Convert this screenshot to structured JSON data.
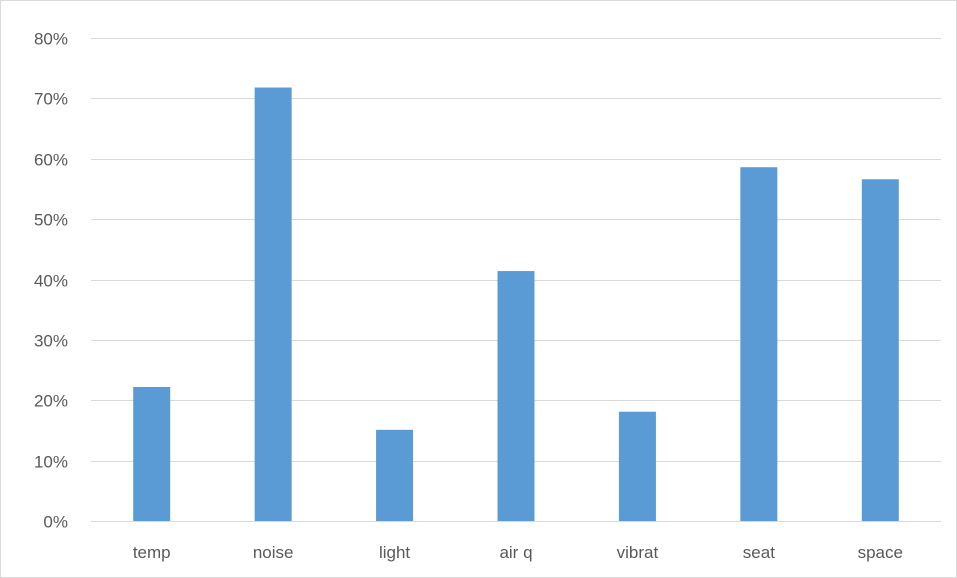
{
  "chart_data": {
    "type": "bar",
    "categories": [
      "temp",
      "noise",
      "light",
      "air q",
      "vibrat",
      "seat",
      "space"
    ],
    "series": [
      {
        "values": [
          0.222,
          0.718,
          0.151,
          0.414,
          0.181,
          0.586,
          0.566
        ],
        "color": "#5b9bd5"
      }
    ],
    "y_axis": {
      "min": 0,
      "max": 0.8,
      "step": 0.1,
      "tick_labels": [
        "0%",
        "10%",
        "20%",
        "30%",
        "40%",
        "50%",
        "60%",
        "70%",
        "80%"
      ]
    },
    "grid": true,
    "legend": "none",
    "title": "",
    "xlabel": "",
    "ylabel": ""
  }
}
